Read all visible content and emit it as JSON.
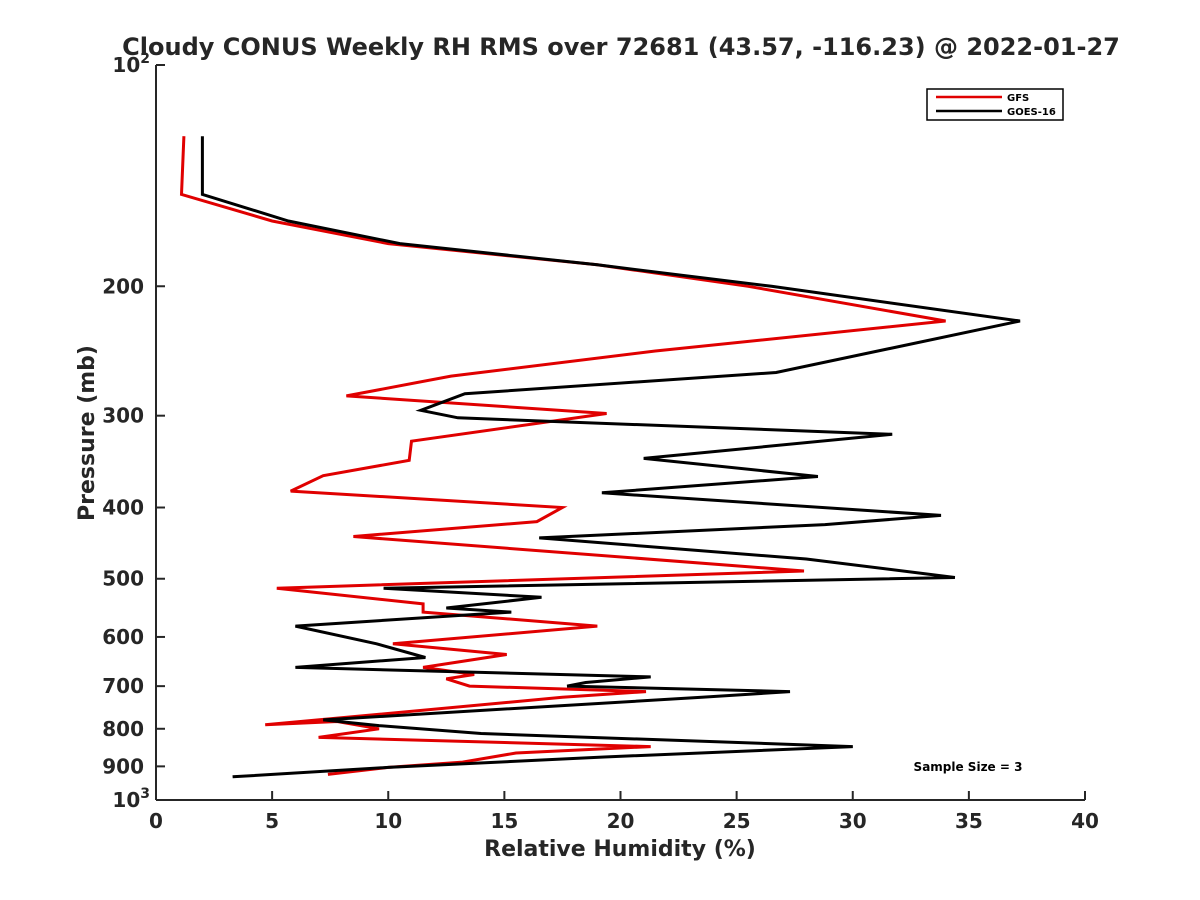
{
  "chart_data": {
    "type": "line",
    "title": "Cloudy CONUS Weekly RH RMS over 72681 (43.57, -116.23) @ 2022-01-27",
    "xlabel": "Relative Humidity (%)",
    "ylabel": "Pressure (mb)",
    "xlim": [
      0,
      40
    ],
    "ylim": [
      100,
      1000
    ],
    "y_scale": "log",
    "y_reversed": true,
    "x_ticks": [
      0,
      5,
      10,
      15,
      20,
      25,
      30,
      35,
      40
    ],
    "y_ticks": [
      {
        "value": 100,
        "label": "10",
        "sup": "2"
      },
      {
        "value": 200,
        "label": "200"
      },
      {
        "value": 300,
        "label": "300"
      },
      {
        "value": 400,
        "label": "400"
      },
      {
        "value": 500,
        "label": "500"
      },
      {
        "value": 600,
        "label": "600"
      },
      {
        "value": 700,
        "label": "700"
      },
      {
        "value": 800,
        "label": "800"
      },
      {
        "value": 900,
        "label": "900"
      },
      {
        "value": 1000,
        "label": "10",
        "sup": "3"
      }
    ],
    "grid": false,
    "legend_position": "top-right",
    "annotation": "Sample Size = 3",
    "series": [
      {
        "name": "GFS",
        "color": "#e00000",
        "points": [
          [
            1.2,
            125
          ],
          [
            1.1,
            150
          ],
          [
            5.0,
            163
          ],
          [
            10.0,
            175
          ],
          [
            19.0,
            187
          ],
          [
            25.5,
            200
          ],
          [
            34.0,
            223
          ],
          [
            21.5,
            245
          ],
          [
            12.7,
            265
          ],
          [
            8.2,
            282
          ],
          [
            19.4,
            298
          ],
          [
            11.0,
            325
          ],
          [
            10.9,
            345
          ],
          [
            7.2,
            362
          ],
          [
            5.8,
            380
          ],
          [
            17.5,
            400
          ],
          [
            16.4,
            418
          ],
          [
            8.5,
            438
          ],
          [
            27.9,
            488
          ],
          [
            5.2,
            515
          ],
          [
            11.5,
            541
          ],
          [
            11.5,
            555
          ],
          [
            19.0,
            580
          ],
          [
            10.2,
            613
          ],
          [
            15.1,
            634
          ],
          [
            11.5,
            660
          ],
          [
            13.7,
            675
          ],
          [
            12.5,
            684
          ],
          [
            13.5,
            700
          ],
          [
            21.1,
            712
          ],
          [
            17.5,
            725
          ],
          [
            4.7,
            790
          ],
          [
            7.8,
            782
          ],
          [
            9.6,
            800
          ],
          [
            7.0,
            822
          ],
          [
            21.3,
            846
          ],
          [
            15.5,
            863
          ],
          [
            13.2,
            888
          ],
          [
            10.0,
            903
          ],
          [
            7.4,
            923
          ]
        ]
      },
      {
        "name": "GOES-16",
        "color": "#000000",
        "points": [
          [
            2.0,
            125
          ],
          [
            2.0,
            150
          ],
          [
            5.7,
            163
          ],
          [
            10.5,
            175
          ],
          [
            19.0,
            187
          ],
          [
            26.5,
            200
          ],
          [
            37.2,
            223
          ],
          [
            26.7,
            262
          ],
          [
            13.3,
            280
          ],
          [
            11.4,
            295
          ],
          [
            13.0,
            302
          ],
          [
            31.7,
            318
          ],
          [
            21.0,
            343
          ],
          [
            28.5,
            363
          ],
          [
            19.2,
            382
          ],
          [
            33.8,
            410
          ],
          [
            28.8,
            422
          ],
          [
            16.5,
            440
          ],
          [
            28.0,
            470
          ],
          [
            34.4,
            498
          ],
          [
            9.8,
            515
          ],
          [
            16.6,
            530
          ],
          [
            12.5,
            548
          ],
          [
            15.3,
            555
          ],
          [
            6.0,
            580
          ],
          [
            9.5,
            613
          ],
          [
            11.6,
            640
          ],
          [
            6.0,
            660
          ],
          [
            21.3,
            680
          ],
          [
            18.5,
            692
          ],
          [
            17.7,
            700
          ],
          [
            27.3,
            712
          ],
          [
            23.5,
            725
          ],
          [
            7.2,
            778
          ],
          [
            9.6,
            792
          ],
          [
            14.0,
            812
          ],
          [
            30.0,
            846
          ],
          [
            19.3,
            874
          ],
          [
            10.0,
            903
          ],
          [
            3.3,
            930
          ]
        ]
      }
    ]
  }
}
